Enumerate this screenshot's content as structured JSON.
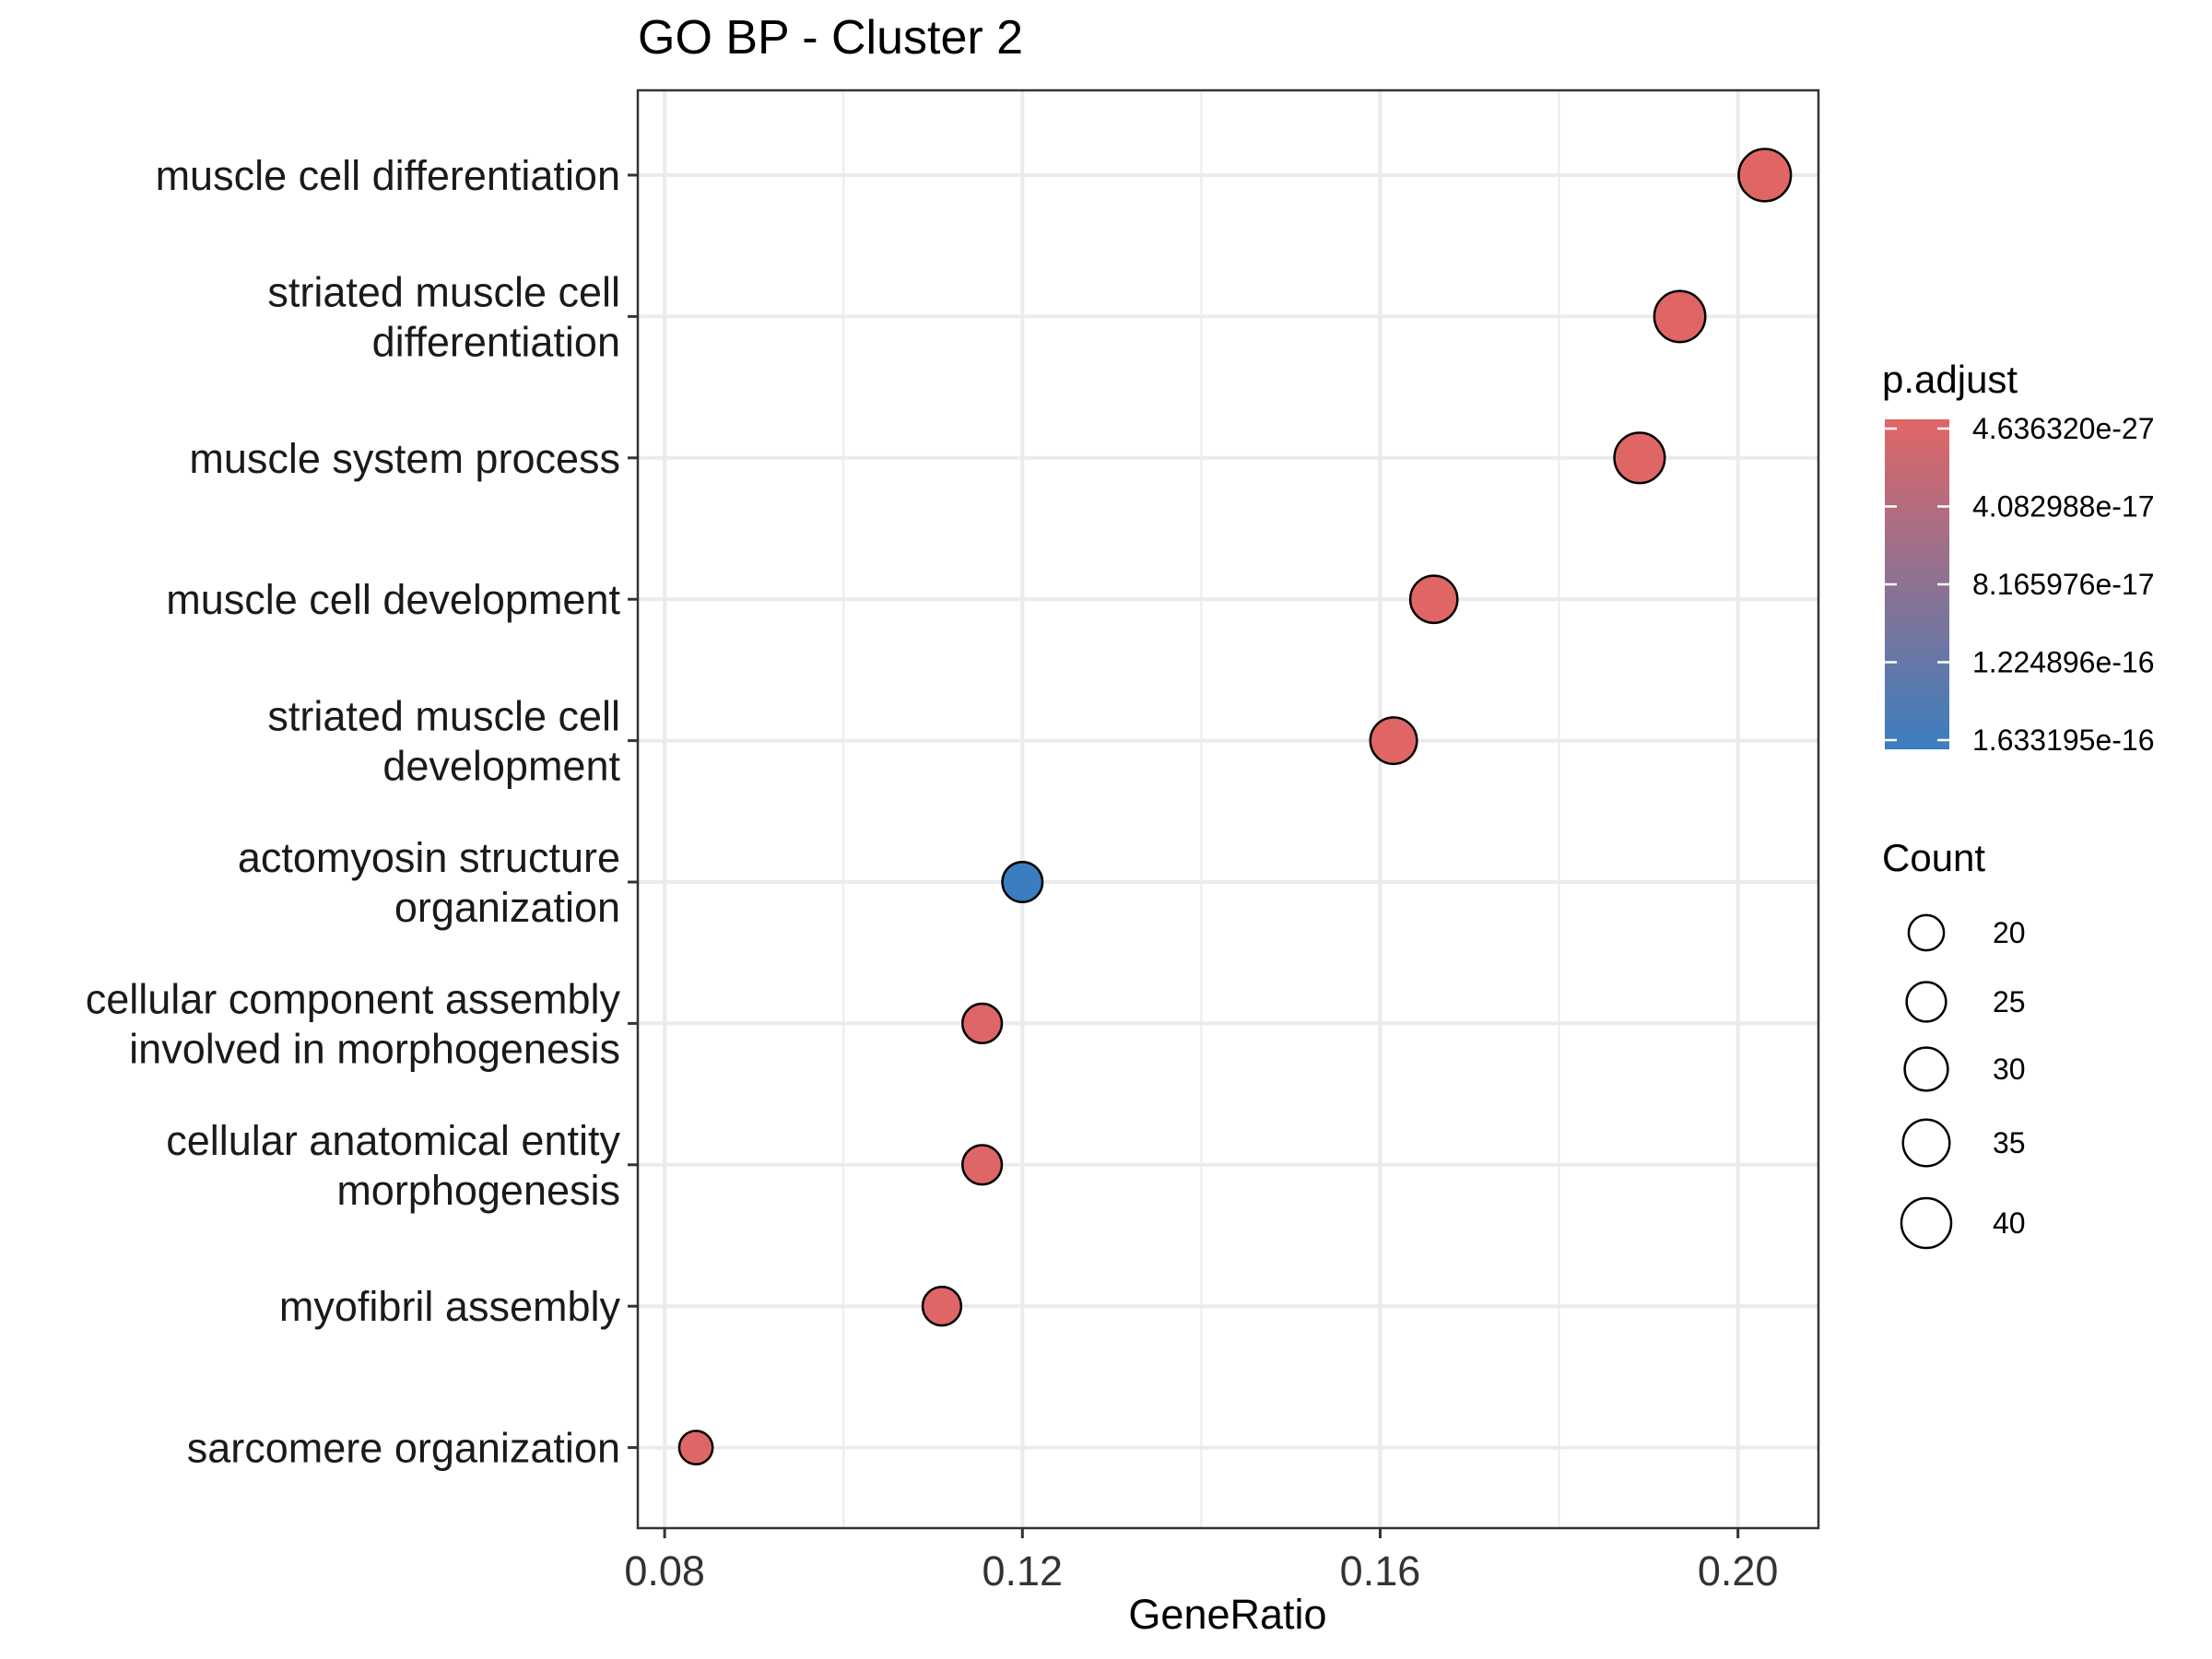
{
  "chart_data": {
    "type": "scatter",
    "title": "GO BP - Cluster 2",
    "xlabel": "GeneRatio",
    "ylabel": "",
    "xlim": [
      0.077,
      0.209
    ],
    "xticks": [
      {
        "value": 0.08,
        "label": "0.08"
      },
      {
        "value": 0.12,
        "label": "0.12"
      },
      {
        "value": 0.16,
        "label": "0.16"
      },
      {
        "value": 0.2,
        "label": "0.20"
      }
    ],
    "grid": true,
    "categories": [
      {
        "label_lines": [
          "muscle cell differentiation"
        ],
        "x": 0.203,
        "count": 44,
        "p_adjust": 4.6e-27
      },
      {
        "label_lines": [
          "striated muscle cell",
          "differentiation"
        ],
        "x": 0.1935,
        "count": 42,
        "p_adjust": 5e-27
      },
      {
        "label_lines": [
          "muscle system process"
        ],
        "x": 0.189,
        "count": 41,
        "p_adjust": 6e-27
      },
      {
        "label_lines": [
          "muscle cell development"
        ],
        "x": 0.166,
        "count": 36,
        "p_adjust": 1e-23
      },
      {
        "label_lines": [
          "striated muscle cell",
          "development"
        ],
        "x": 0.1615,
        "count": 35,
        "p_adjust": 1e-22
      },
      {
        "label_lines": [
          "actomyosin structure",
          "organization"
        ],
        "x": 0.12,
        "count": 26,
        "p_adjust": 1.633195e-16
      },
      {
        "label_lines": [
          "cellular component assembly",
          "involved in morphogenesis"
        ],
        "x": 0.1155,
        "count": 25,
        "p_adjust": 1e-18
      },
      {
        "label_lines": [
          "cellular anatomical entity",
          "morphogenesis"
        ],
        "x": 0.1155,
        "count": 25,
        "p_adjust": 1e-18
      },
      {
        "label_lines": [
          "myofibril assembly"
        ],
        "x": 0.111,
        "count": 24,
        "p_adjust": 1e-18
      },
      {
        "label_lines": [
          "sarcomere organization"
        ],
        "x": 0.0835,
        "count": 18,
        "p_adjust": 1e-18
      }
    ],
    "color_legend": {
      "title": "p.adjust",
      "low_color": "#e06666",
      "high_color": "#3a7ebf",
      "labels": [
        "4.636320e-27",
        "4.082988e-17",
        "8.165976e-17",
        "1.224896e-16",
        "1.633195e-16"
      ],
      "min": 4.63632e-27,
      "max": 1.633195e-16
    },
    "size_legend": {
      "title": "Count",
      "values": [
        20,
        25,
        30,
        35,
        40
      ],
      "labels": [
        "20",
        "25",
        "30",
        "35",
        "40"
      ]
    },
    "legend_position": "right"
  }
}
